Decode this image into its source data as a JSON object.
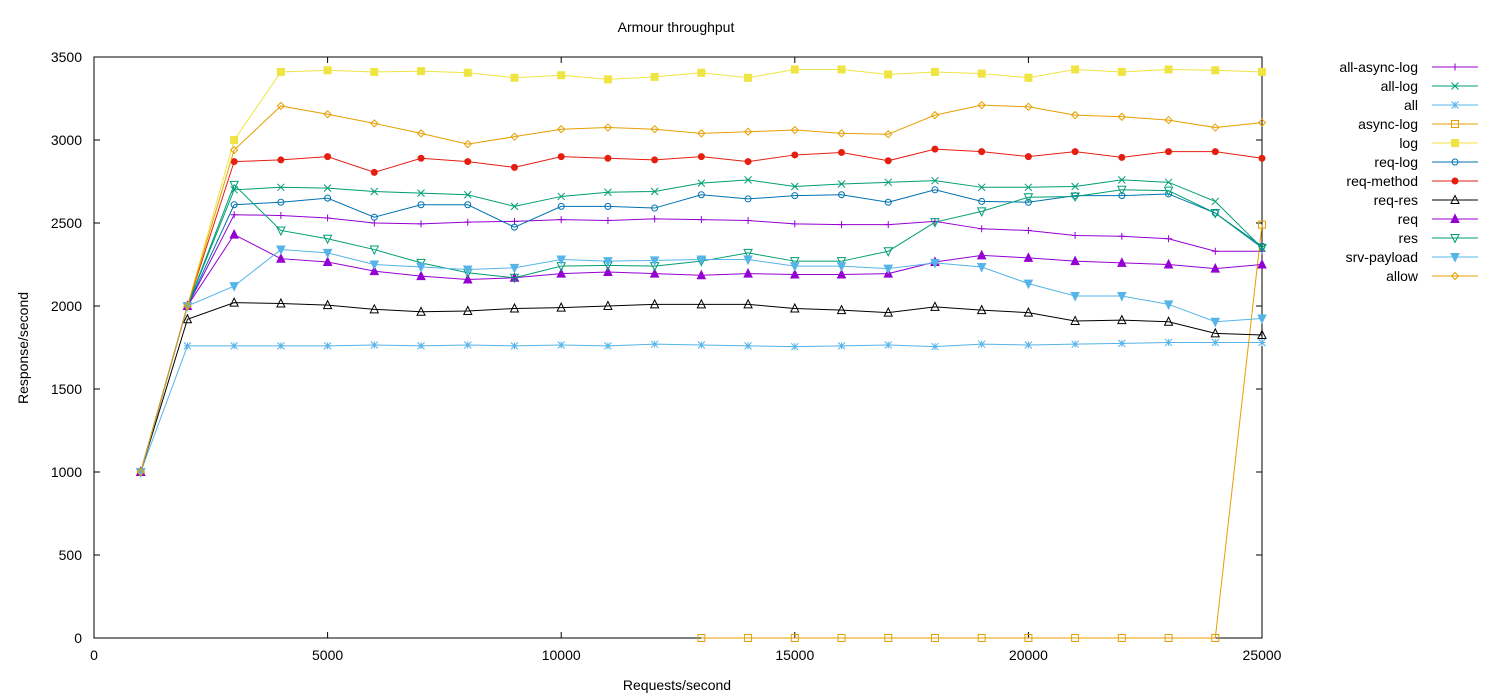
{
  "chart_data": {
    "type": "line",
    "title": "Armour throughput",
    "xlabel": "Requests/second",
    "ylabel": "Response/second",
    "xlim": [
      0,
      25000
    ],
    "ylim": [
      0,
      3500
    ],
    "xticks": [
      "0",
      "5000",
      "10000",
      "15000",
      "20000",
      "25000"
    ],
    "yticks": [
      "0",
      "500",
      "1000",
      "1500",
      "2000",
      "2500",
      "3000",
      "3500"
    ],
    "grid": false,
    "legend_position": "right",
    "x": [
      1000,
      2000,
      3000,
      4000,
      5000,
      6000,
      7000,
      8000,
      9000,
      10000,
      11000,
      12000,
      13000,
      14000,
      15000,
      16000,
      17000,
      18000,
      19000,
      20000,
      21000,
      22000,
      23000,
      24000,
      25000
    ],
    "series": [
      {
        "name": "all-async-log",
        "color": "#9400d3",
        "marker": "plus",
        "values": [
          1000,
          2000,
          2550,
          2545,
          2530,
          2500,
          2495,
          2505,
          2510,
          2520,
          2515,
          2525,
          2520,
          2515,
          2495,
          2490,
          2490,
          2510,
          2465,
          2455,
          2425,
          2420,
          2405,
          2330,
          2330
        ]
      },
      {
        "name": "all-log",
        "color": "#009e73",
        "marker": "cross",
        "values": [
          1000,
          2000,
          2700,
          2715,
          2710,
          2690,
          2680,
          2670,
          2600,
          2660,
          2685,
          2690,
          2740,
          2760,
          2720,
          2735,
          2745,
          2755,
          2715,
          2715,
          2720,
          2760,
          2745,
          2630,
          2350
        ]
      },
      {
        "name": "all",
        "color": "#56b4e9",
        "marker": "star",
        "values": [
          1000,
          1760,
          1760,
          1760,
          1760,
          1765,
          1760,
          1765,
          1760,
          1765,
          1760,
          1770,
          1765,
          1760,
          1755,
          1760,
          1765,
          1755,
          1770,
          1765,
          1770,
          1775,
          1780,
          1780,
          1780
        ]
      },
      {
        "name": "async-log",
        "color": "#e69f00",
        "marker": "square-open",
        "values": [
          null,
          null,
          null,
          null,
          null,
          null,
          null,
          null,
          null,
          null,
          null,
          null,
          0,
          0,
          0,
          0,
          0,
          0,
          0,
          0,
          0,
          0,
          0,
          0,
          2490
        ]
      },
      {
        "name": "log",
        "color": "#f0e442",
        "marker": "square-filled",
        "values": [
          1000,
          2000,
          3000,
          3410,
          3420,
          3410,
          3415,
          3405,
          3375,
          3390,
          3365,
          3380,
          3405,
          3375,
          3425,
          3425,
          3395,
          3410,
          3400,
          3375,
          3425,
          3410,
          3425,
          3420,
          3410
        ]
      },
      {
        "name": "req-log",
        "color": "#0072b2",
        "marker": "circle-open",
        "values": [
          1000,
          2000,
          2610,
          2625,
          2650,
          2535,
          2610,
          2610,
          2475,
          2600,
          2600,
          2590,
          2670,
          2645,
          2665,
          2670,
          2625,
          2700,
          2630,
          2625,
          2665,
          2665,
          2675,
          2560,
          2360
        ]
      },
      {
        "name": "req-method",
        "color": "#e51e10",
        "marker": "circle-filled",
        "values": [
          1000,
          2000,
          2870,
          2880,
          2900,
          2805,
          2890,
          2870,
          2835,
          2900,
          2890,
          2880,
          2900,
          2870,
          2910,
          2925,
          2875,
          2945,
          2930,
          2900,
          2930,
          2895,
          2930,
          2930,
          2890
        ]
      },
      {
        "name": "req-res",
        "color": "#000000",
        "marker": "triangle-open",
        "values": [
          1000,
          1920,
          2020,
          2015,
          2005,
          1980,
          1965,
          1970,
          1985,
          1990,
          2000,
          2010,
          2010,
          2010,
          1985,
          1975,
          1960,
          1995,
          1975,
          1960,
          1910,
          1915,
          1905,
          1835,
          1825
        ]
      },
      {
        "name": "req",
        "color": "#9400d3",
        "marker": "triangle-filled",
        "values": [
          1000,
          2000,
          2430,
          2285,
          2265,
          2210,
          2180,
          2160,
          2170,
          2195,
          2205,
          2195,
          2185,
          2195,
          2190,
          2190,
          2195,
          2265,
          2305,
          2290,
          2270,
          2260,
          2250,
          2225,
          2250
        ]
      },
      {
        "name": "res",
        "color": "#009e73",
        "marker": "triangle-down-open",
        "values": [
          1000,
          2000,
          2730,
          2455,
          2405,
          2340,
          2260,
          2200,
          2170,
          2240,
          2245,
          2240,
          2270,
          2320,
          2270,
          2270,
          2330,
          2505,
          2570,
          2655,
          2660,
          2700,
          2695,
          2560,
          2350
        ]
      },
      {
        "name": "srv-payload",
        "color": "#56b4e9",
        "marker": "triangle-down-filled",
        "values": [
          1000,
          2000,
          2120,
          2340,
          2320,
          2250,
          2235,
          2220,
          2230,
          2280,
          2270,
          2275,
          2280,
          2280,
          2240,
          2240,
          2225,
          2260,
          2235,
          2135,
          2060,
          2060,
          2010,
          1905,
          1925
        ]
      },
      {
        "name": "allow",
        "color": "#e69f00",
        "marker": "diamond-open",
        "values": [
          1000,
          2000,
          2940,
          3205,
          3155,
          3100,
          3040,
          2975,
          3020,
          3065,
          3075,
          3065,
          3040,
          3050,
          3060,
          3040,
          3035,
          3150,
          3210,
          3200,
          3150,
          3140,
          3120,
          3075,
          3105
        ]
      }
    ]
  }
}
